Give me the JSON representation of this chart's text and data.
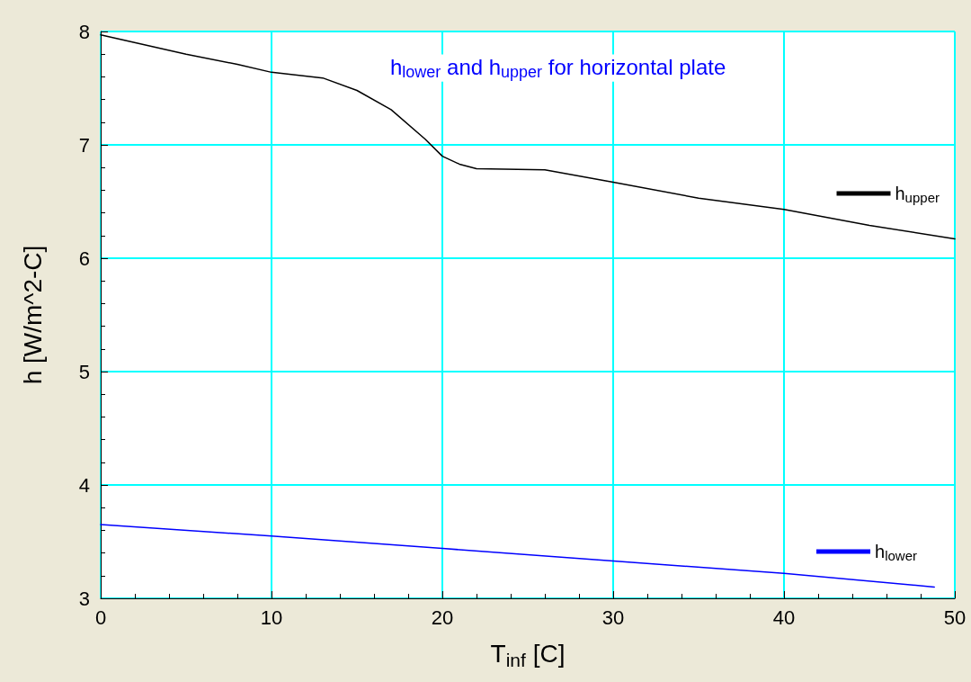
{
  "chart_data": {
    "type": "line",
    "title": "h$_{lower}$ and h$_{upper}$ for horizontal plate",
    "xlabel": "T$_{inf}$ [C]",
    "ylabel": "h [W/m^2-C]",
    "xlim": [
      0,
      50
    ],
    "xticks": [
      0,
      10,
      20,
      30,
      40,
      50
    ],
    "ylim": [
      3,
      8
    ],
    "yticks": [
      3,
      4,
      5,
      6,
      7,
      8
    ],
    "grid": true,
    "legend": "right",
    "marker": "none",
    "line_style": "solid",
    "series": [
      {
        "name": "h$_{upper}$",
        "color": "#000000",
        "x": [
          0,
          5,
          8,
          10,
          13,
          15,
          17,
          19,
          20,
          21,
          22,
          26,
          30,
          35,
          40,
          45,
          50
        ],
        "values": [
          7.97,
          7.8,
          7.71,
          7.64,
          7.59,
          7.48,
          7.31,
          7.05,
          6.9,
          6.83,
          6.79,
          6.78,
          6.67,
          6.53,
          6.43,
          6.29,
          6.17
        ]
      },
      {
        "name": "h$_{lower}$",
        "color": "#0000ff",
        "x": [
          0,
          10,
          20,
          30,
          40,
          48.8
        ],
        "values": [
          3.65,
          3.55,
          3.44,
          3.33,
          3.22,
          3.1
        ]
      }
    ]
  }
}
